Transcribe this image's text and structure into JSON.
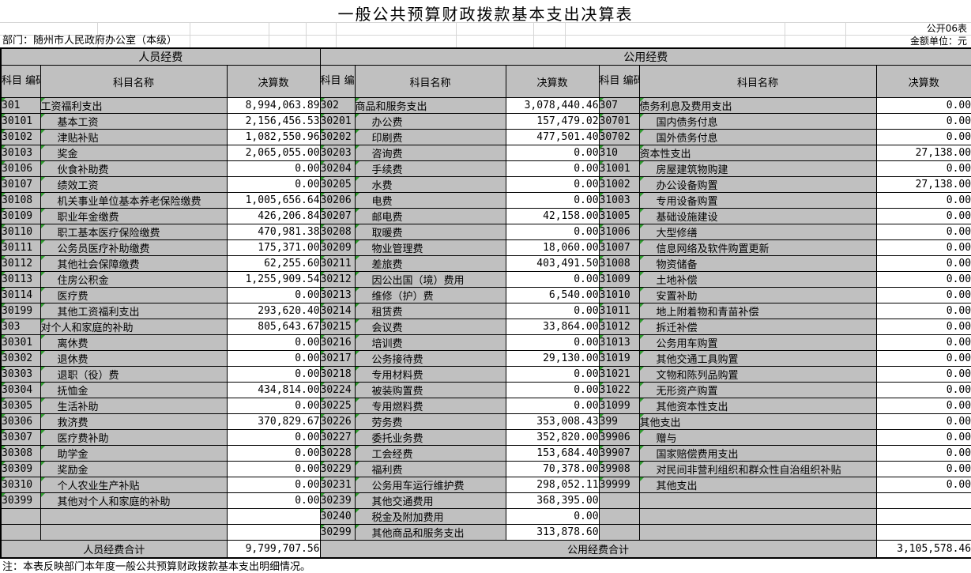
{
  "meta": {
    "title": "一般公共预算财政拨款基本支出决算表",
    "doc_number": "公开06表",
    "department": "部门：随州市人民政府办公室（本级）",
    "unit": "金额单位：元",
    "footnote": "注：本表反映部门本年度一般公共预算财政拨款基本支出明细情况。"
  },
  "table": {
    "group_headers": {
      "personnel": "人员经费",
      "public": "公用经费"
    },
    "column_headers": {
      "code": "科目\n编码",
      "name": "科目名称",
      "amount": "决算数"
    },
    "panels": [
      {
        "rows": [
          {
            "code": "301",
            "name": "工资福利支出",
            "amount": "8,994,063.89"
          },
          {
            "code": "30101",
            "name": "基本工资",
            "amount": "2,156,456.53"
          },
          {
            "code": "30102",
            "name": "津贴补贴",
            "amount": "1,082,550.96"
          },
          {
            "code": "30103",
            "name": "奖金",
            "amount": "2,065,055.00"
          },
          {
            "code": "30106",
            "name": "伙食补助费",
            "amount": "0.00"
          },
          {
            "code": "30107",
            "name": "绩效工资",
            "amount": "0.00"
          },
          {
            "code": "30108",
            "name": "机关事业单位基本养老保险缴费",
            "amount": "1,005,656.64"
          },
          {
            "code": "30109",
            "name": "职业年金缴费",
            "amount": "426,206.84"
          },
          {
            "code": "30110",
            "name": "职工基本医疗保险缴费",
            "amount": "470,981.38"
          },
          {
            "code": "30111",
            "name": "公务员医疗补助缴费",
            "amount": "175,371.00"
          },
          {
            "code": "30112",
            "name": "其他社会保障缴费",
            "amount": "62,255.60"
          },
          {
            "code": "30113",
            "name": "住房公积金",
            "amount": "1,255,909.54"
          },
          {
            "code": "30114",
            "name": "医疗费",
            "amount": "0.00"
          },
          {
            "code": "30199",
            "name": "其他工资福利支出",
            "amount": "293,620.40"
          },
          {
            "code": "303",
            "name": "对个人和家庭的补助",
            "amount": "805,643.67"
          },
          {
            "code": "30301",
            "name": "离休费",
            "amount": "0.00"
          },
          {
            "code": "30302",
            "name": "退休费",
            "amount": "0.00"
          },
          {
            "code": "30303",
            "name": "退职（役）费",
            "amount": "0.00"
          },
          {
            "code": "30304",
            "name": "抚恤金",
            "amount": "434,814.00"
          },
          {
            "code": "30305",
            "name": "生活补助",
            "amount": "0.00"
          },
          {
            "code": "30306",
            "name": "救济费",
            "amount": "370,829.67"
          },
          {
            "code": "30307",
            "name": "医疗费补助",
            "amount": "0.00"
          },
          {
            "code": "30308",
            "name": "助学金",
            "amount": "0.00"
          },
          {
            "code": "30309",
            "name": "奖励金",
            "amount": "0.00"
          },
          {
            "code": "30310",
            "name": "个人农业生产补贴",
            "amount": "0.00"
          },
          {
            "code": "30399",
            "name": "其他对个人和家庭的补助",
            "amount": "0.00"
          }
        ]
      },
      {
        "rows": [
          {
            "code": "302",
            "name": "商品和服务支出",
            "amount": "3,078,440.46"
          },
          {
            "code": "30201",
            "name": "办公费",
            "amount": "157,479.02"
          },
          {
            "code": "30202",
            "name": "印刷费",
            "amount": "477,501.40"
          },
          {
            "code": "30203",
            "name": "咨询费",
            "amount": "0.00"
          },
          {
            "code": "30204",
            "name": "手续费",
            "amount": "0.00"
          },
          {
            "code": "30205",
            "name": "水费",
            "amount": "0.00"
          },
          {
            "code": "30206",
            "name": "电费",
            "amount": "0.00"
          },
          {
            "code": "30207",
            "name": "邮电费",
            "amount": "42,158.00"
          },
          {
            "code": "30208",
            "name": "取暖费",
            "amount": "0.00"
          },
          {
            "code": "30209",
            "name": "物业管理费",
            "amount": "18,060.00"
          },
          {
            "code": "30211",
            "name": "差旅费",
            "amount": "403,491.50"
          },
          {
            "code": "30212",
            "name": "因公出国（境）费用",
            "amount": "0.00"
          },
          {
            "code": "30213",
            "name": "维修（护）费",
            "amount": "6,540.00"
          },
          {
            "code": "30214",
            "name": "租赁费",
            "amount": "0.00"
          },
          {
            "code": "30215",
            "name": "会议费",
            "amount": "33,864.00"
          },
          {
            "code": "30216",
            "name": "培训费",
            "amount": "0.00"
          },
          {
            "code": "30217",
            "name": "公务接待费",
            "amount": "29,130.00"
          },
          {
            "code": "30218",
            "name": "专用材料费",
            "amount": "0.00"
          },
          {
            "code": "30224",
            "name": "被装购置费",
            "amount": "0.00"
          },
          {
            "code": "30225",
            "name": "专用燃料费",
            "amount": "0.00"
          },
          {
            "code": "30226",
            "name": "劳务费",
            "amount": "353,008.43"
          },
          {
            "code": "30227",
            "name": "委托业务费",
            "amount": "352,820.00"
          },
          {
            "code": "30228",
            "name": "工会经费",
            "amount": "153,684.40"
          },
          {
            "code": "30229",
            "name": "福利费",
            "amount": "70,378.00"
          },
          {
            "code": "30231",
            "name": "公务用车运行维护费",
            "amount": "298,052.11"
          },
          {
            "code": "30239",
            "name": "其他交通费用",
            "amount": "368,395.00"
          },
          {
            "code": "30240",
            "name": "税金及附加费用",
            "amount": "0.00"
          },
          {
            "code": "30299",
            "name": "其他商品和服务支出",
            "amount": "313,878.60"
          }
        ]
      },
      {
        "rows": [
          {
            "code": "307",
            "name": "债务利息及费用支出",
            "amount": "0.00"
          },
          {
            "code": "30701",
            "name": "国内债务付息",
            "amount": "0.00"
          },
          {
            "code": "30702",
            "name": "国外债务付息",
            "amount": "0.00"
          },
          {
            "code": "310",
            "name": "资本性支出",
            "amount": "27,138.00"
          },
          {
            "code": "31001",
            "name": "房屋建筑物购建",
            "amount": "0.00"
          },
          {
            "code": "31002",
            "name": "办公设备购置",
            "amount": "27,138.00"
          },
          {
            "code": "31003",
            "name": "专用设备购置",
            "amount": "0.00"
          },
          {
            "code": "31005",
            "name": "基础设施建设",
            "amount": "0.00"
          },
          {
            "code": "31006",
            "name": "大型修缮",
            "amount": "0.00"
          },
          {
            "code": "31007",
            "name": "信息网络及软件购置更新",
            "amount": "0.00"
          },
          {
            "code": "31008",
            "name": "物资储备",
            "amount": "0.00"
          },
          {
            "code": "31009",
            "name": "土地补偿",
            "amount": "0.00"
          },
          {
            "code": "31010",
            "name": "安置补助",
            "amount": "0.00"
          },
          {
            "code": "31011",
            "name": "地上附着物和青苗补偿",
            "amount": "0.00"
          },
          {
            "code": "31012",
            "name": "拆迁补偿",
            "amount": "0.00"
          },
          {
            "code": "31013",
            "name": "公务用车购置",
            "amount": "0.00"
          },
          {
            "code": "31019",
            "name": "其他交通工具购置",
            "amount": "0.00"
          },
          {
            "code": "31021",
            "name": "文物和陈列品购置",
            "amount": "0.00"
          },
          {
            "code": "31022",
            "name": "无形资产购置",
            "amount": "0.00"
          },
          {
            "code": "31099",
            "name": "其他资本性支出",
            "amount": "0.00"
          },
          {
            "code": "399",
            "name": "其他支出",
            "amount": "0.00"
          },
          {
            "code": "39906",
            "name": "赠与",
            "amount": "0.00"
          },
          {
            "code": "39907",
            "name": "国家赔偿费用支出",
            "amount": "0.00"
          },
          {
            "code": "39908",
            "name": "对民间非营利组织和群众性自治组织补贴",
            "amount": "0.00"
          },
          {
            "code": "39999",
            "name": "其他支出",
            "amount": "0.00"
          }
        ]
      }
    ],
    "row_count": 28,
    "totals": {
      "personnel_label": "人员经费合计",
      "personnel_amount": "9,799,707.56",
      "public_label": "公用经费合计",
      "public_amount": "3,105,578.46"
    }
  },
  "colors": {
    "cell_gray": "#c0c0c0",
    "grid_black": "#000000",
    "flag_green": "#2e9b2e",
    "faint_gridline": "#d6d6d6"
  }
}
